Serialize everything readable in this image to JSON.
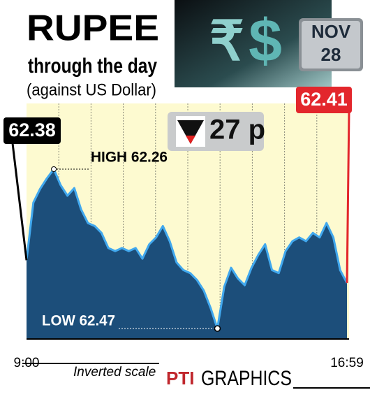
{
  "chart_data": {
    "type": "area",
    "title": "RUPEE",
    "subtitle": "through the day",
    "note": "(against US Dollar)",
    "symbols": [
      "₹",
      "$"
    ],
    "date": {
      "month": "NOV",
      "day": "28"
    },
    "open": 62.38,
    "close": 62.41,
    "change": "27 p",
    "high": {
      "value": 62.26,
      "label": "HIGH 62.26"
    },
    "low": {
      "value": 62.47,
      "label": "LOW 62.47"
    },
    "inverted": true,
    "grid": true,
    "categories": [
      "9:00",
      null,
      null,
      null,
      null,
      null,
      null,
      null,
      null,
      null,
      null,
      null,
      null,
      null,
      null,
      null,
      null,
      null,
      null,
      null,
      null,
      null,
      null,
      null,
      null,
      null,
      null,
      null,
      null,
      null,
      null,
      null,
      null,
      null,
      null,
      null,
      null,
      null,
      null,
      null,
      null,
      null,
      null,
      null,
      null,
      null,
      null,
      "16:59"
    ],
    "series": [
      {
        "color": "#41a8ee",
        "fill": "#1c4e7a",
        "values": [
          62.38,
          62.304,
          62.286,
          62.272,
          62.26,
          62.281,
          62.295,
          62.285,
          62.313,
          62.331,
          62.335,
          62.344,
          62.364,
          62.368,
          62.364,
          62.368,
          62.364,
          62.378,
          62.359,
          62.35,
          62.335,
          62.355,
          62.383,
          62.393,
          62.397,
          62.406,
          62.42,
          62.443,
          62.47,
          62.415,
          62.39,
          62.404,
          62.413,
          62.39,
          62.373,
          62.359,
          62.393,
          62.397,
          62.368,
          62.355,
          62.35,
          62.355,
          62.344,
          62.35,
          62.331,
          62.35,
          62.393,
          62.41
        ]
      }
    ],
    "scale_note": "Inverted scale",
    "credit": [
      "PTI",
      "GRAPHICS"
    ]
  }
}
